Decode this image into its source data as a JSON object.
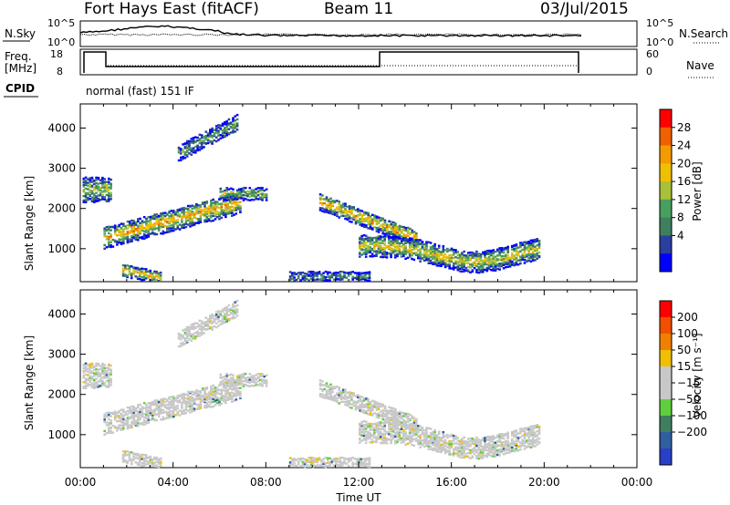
{
  "header": {
    "station": "Fort Hays East (fitACF)",
    "beam": "Beam 11",
    "date": "03/Jul/2015"
  },
  "strips": {
    "nsky_label": "N.Sky",
    "nsearch_label": "N.Search",
    "noise_ticks": [
      "10^5",
      "10^0"
    ],
    "freq_label_1": "Freq.",
    "freq_label_2": "[MHz]",
    "freq_ticks": [
      "18",
      "8"
    ],
    "nave_label": "Nave",
    "nave_ticks": [
      "60",
      "0"
    ],
    "cpid_label": "CPID",
    "cpid_text": "normal (fast) 151 IF"
  },
  "colors": {
    "power_scale": [
      "#0000ff",
      "#2a3fa0",
      "#3f7f5f",
      "#48a060",
      "#a8c03a",
      "#f0c000",
      "#f59a00",
      "#f06000",
      "#ff0000"
    ],
    "velocity_scale": [
      "#2a3fc8",
      "#2f5fa0",
      "#3f7f5f",
      "#5fcf3f",
      "#c8c8c8",
      "#c8c8c8",
      "#f0c000",
      "#f08000",
      "#f05000",
      "#ff0000"
    ]
  },
  "chart_data": [
    {
      "type": "heatmap",
      "name": "power",
      "xlabel": "",
      "ylabel": "Slant Range [km]",
      "xlim": [
        "00:00",
        "00:00"
      ],
      "ylim": [
        180,
        4600
      ],
      "yticks": [
        "1000",
        "2000",
        "3000",
        "4000"
      ],
      "colorbar": {
        "label": "Power [dB]",
        "ticks": [
          "4",
          "8",
          "12",
          "16",
          "20",
          "24",
          "28"
        ]
      },
      "echo_regions": [
        {
          "t": [
            0.0,
            1.2
          ],
          "range_km": [
            2100,
            2900
          ],
          "level_db": 16
        },
        {
          "t": [
            1.0,
            6.8
          ],
          "range_km": [
            900,
            2600
          ],
          "level_db": 20
        },
        {
          "t": [
            4.0,
            6.8
          ],
          "range_km": [
            3200,
            4400
          ],
          "level_db": 14
        },
        {
          "t": [
            10.5,
            19.5
          ],
          "range_km": [
            700,
            2300
          ],
          "level_db": 18
        },
        {
          "t": [
            9.0,
            12.5
          ],
          "range_km": [
            200,
            500
          ],
          "level_db": 10
        }
      ]
    },
    {
      "type": "heatmap",
      "name": "velocity",
      "xlabel": "Time UT",
      "ylabel": "Slant Range [km]",
      "xlim": [
        "00:00",
        "00:00"
      ],
      "ylim": [
        180,
        4600
      ],
      "xticks": [
        "00:00",
        "04:00",
        "08:00",
        "12:00",
        "16:00",
        "20:00",
        "00:00"
      ],
      "yticks": [
        "1000",
        "2000",
        "3000",
        "4000"
      ],
      "colorbar": {
        "label": "Velocity [m s⁻¹]",
        "ticks": [
          "200",
          "100",
          "50",
          "15",
          "−15",
          "−50",
          "−100",
          "−200"
        ]
      }
    }
  ]
}
